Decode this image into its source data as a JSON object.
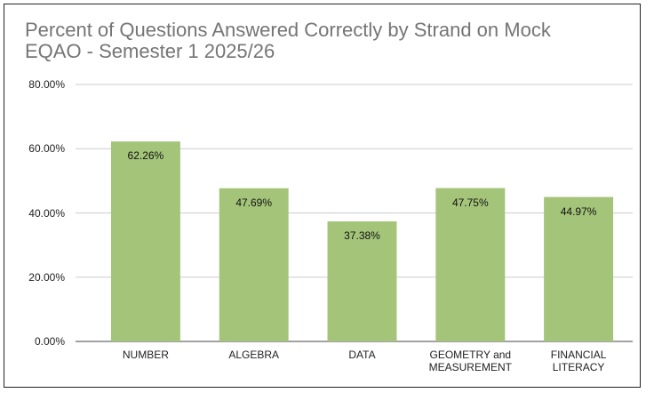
{
  "chart_data": {
    "type": "bar",
    "title": "Percent of Questions Answered Correctly by Strand on Mock EQAO - Semester 1 2025/26",
    "categories": [
      "NUMBER",
      "ALGEBRA",
      "DATA",
      "GEOMETRY and MEASUREMENT",
      "FINANCIAL LITERACY"
    ],
    "values": [
      62.26,
      47.69,
      37.38,
      47.75,
      44.97
    ],
    "value_labels": [
      "62.26%",
      "47.69%",
      "37.38%",
      "47.75%",
      "44.97%"
    ],
    "color": "#a4c47a",
    "ylim": [
      0,
      80
    ],
    "yticks": [
      {
        "value": 0,
        "label": "0.00%"
      },
      {
        "value": 20,
        "label": "20.00%"
      },
      {
        "value": 40,
        "label": "40.00%"
      },
      {
        "value": 60,
        "label": "60.00%"
      },
      {
        "value": 80,
        "label": "80.00%"
      }
    ],
    "grid": true
  }
}
